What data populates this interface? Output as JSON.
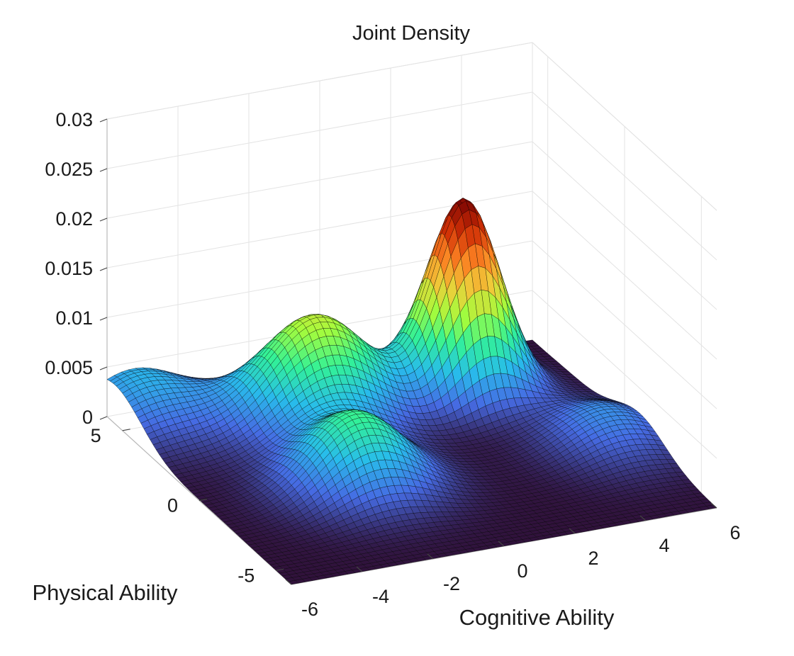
{
  "chart_data": {
    "type": "surface",
    "title": "Joint Density",
    "xlabel": "Cognitive Ability",
    "ylabel": "Physical Ability",
    "zlabel": "",
    "xlim": [
      -6,
      6
    ],
    "ylim": [
      -6,
      6
    ],
    "zlim": [
      0,
      0.03
    ],
    "x_ticks": [
      -6,
      -4,
      -2,
      0,
      2,
      4,
      6
    ],
    "y_ticks": [
      -5,
      0,
      5
    ],
    "z_ticks": [
      0,
      0.005,
      0.01,
      0.015,
      0.02,
      0.025,
      0.03
    ],
    "x_tick_labels": [
      "-6",
      "-4",
      "-2",
      "0",
      "2",
      "4",
      "6"
    ],
    "y_tick_labels": [
      "-5",
      "0",
      "5"
    ],
    "z_tick_labels": [
      "0",
      "0.005",
      "0.01",
      "0.015",
      "0.02",
      "0.025",
      "0.03"
    ],
    "colormap": "turbo",
    "grid": true,
    "components": [
      {
        "x_mean": 3.0,
        "y_mean": 3.5,
        "x_sd": 0.95,
        "y_sd": 1.1,
        "peak": 0.0195
      },
      {
        "x_mean": -1.2,
        "y_mean": 3.5,
        "x_sd": 1.5,
        "y_sd": 1.4,
        "peak": 0.0105
      },
      {
        "x_mean": -2.0,
        "y_mean": -1.0,
        "x_sd": 1.3,
        "y_sd": 1.5,
        "peak": 0.0075
      },
      {
        "x_mean": -5.3,
        "y_mean": 5.5,
        "x_sd": 1.3,
        "y_sd": 1.7,
        "peak": 0.0045
      },
      {
        "x_mean": 5.0,
        "y_mean": -1.0,
        "x_sd": 1.2,
        "y_sd": 1.6,
        "peak": 0.0035
      }
    ]
  }
}
